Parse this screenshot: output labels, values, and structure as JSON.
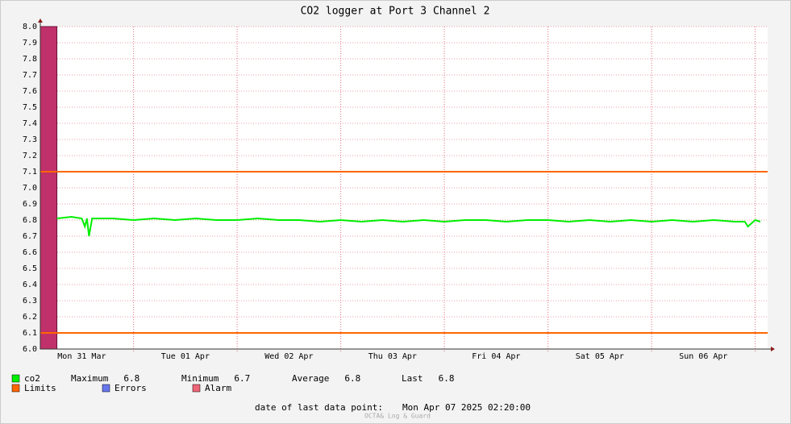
{
  "chart_data": {
    "type": "line",
    "title": "CO2 logger at Port 3 Channel 2",
    "ylim": [
      6.0,
      8.0
    ],
    "yticks": [
      {
        "value": 6.0,
        "label": "6.0"
      },
      6.1,
      6.2,
      6.3,
      6.4,
      6.5,
      6.6,
      6.7,
      6.8,
      6.9,
      {
        "value": 7.0,
        "label": "7.0"
      },
      7.1,
      7.2,
      7.3,
      7.4,
      7.5,
      7.6,
      7.7,
      7.8,
      7.9,
      {
        "value": 8.0,
        "label": "8.0"
      }
    ],
    "xlim": [
      0.1,
      7.12
    ],
    "xticks": [
      {
        "value": 0.5,
        "label": "Mon 31 Mar"
      },
      {
        "value": 1.5,
        "label": "Tue 01 Apr"
      },
      {
        "value": 2.5,
        "label": "Wed 02 Apr"
      },
      {
        "value": 3.5,
        "label": "Thu 03 Apr"
      },
      {
        "value": 4.5,
        "label": "Fri 04 Apr"
      },
      {
        "value": 5.5,
        "label": "Sat 05 Apr"
      },
      {
        "value": 6.5,
        "label": "Sun 06 Apr"
      }
    ],
    "grid": true,
    "series": [
      {
        "name": "co2",
        "color": "#00ee00",
        "x": [
          0.26,
          0.4,
          0.5,
          0.53,
          0.55,
          0.57,
          0.6,
          0.8,
          1.0,
          1.2,
          1.4,
          1.6,
          1.8,
          2.0,
          2.2,
          2.4,
          2.6,
          2.8,
          3.0,
          3.2,
          3.4,
          3.6,
          3.8,
          4.0,
          4.2,
          4.4,
          4.6,
          4.8,
          5.0,
          5.2,
          5.4,
          5.6,
          5.8,
          6.0,
          6.2,
          6.4,
          6.6,
          6.8,
          6.9,
          6.93,
          7.0,
          7.05
        ],
        "values": [
          6.81,
          6.82,
          6.81,
          6.76,
          6.81,
          6.7,
          6.81,
          6.81,
          6.8,
          6.81,
          6.8,
          6.81,
          6.8,
          6.8,
          6.81,
          6.8,
          6.8,
          6.79,
          6.8,
          6.79,
          6.8,
          6.79,
          6.8,
          6.79,
          6.8,
          6.8,
          6.79,
          6.8,
          6.8,
          6.79,
          6.8,
          6.79,
          6.8,
          6.79,
          6.8,
          6.79,
          6.8,
          6.79,
          6.79,
          6.76,
          6.8,
          6.79
        ],
        "stats": [
          {
            "label": "Maximum",
            "value": 6.8
          },
          {
            "label": "Minimum",
            "value": 6.7
          },
          {
            "label": "Average",
            "value": 6.8
          },
          {
            "label": "Last",
            "value": 6.8
          }
        ]
      }
    ],
    "limits": {
      "name": "Limits",
      "color": "#ff6600",
      "values": [
        7.1,
        6.1
      ]
    },
    "errors": {
      "name": "Errors",
      "color": "#6677ee"
    },
    "alarm": {
      "name": "Alarm",
      "color": "#ee6677",
      "band_color": "#c0306a",
      "periods": [
        [
          0.1,
          0.26
        ]
      ]
    },
    "footer_label": "date of last data point:",
    "footer_value": "Mon Apr 07 2025 02:20:00",
    "watermark": "OCTA& Log & Guard"
  }
}
